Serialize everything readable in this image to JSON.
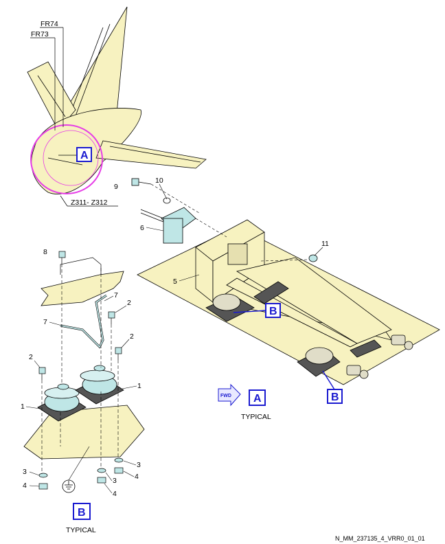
{
  "callouts": {
    "fr74": "FR74",
    "fr73": "FR73",
    "zone": "Z311- Z312",
    "view_a": "A",
    "view_b": "B",
    "typical": "TYPICAL",
    "fwd": "FWD"
  },
  "item_numbers": {
    "n1": "1",
    "n2": "2",
    "n3": "3",
    "n4": "4",
    "n5": "5",
    "n6": "6",
    "n7": "7",
    "n8": "8",
    "n9": "9",
    "n10": "10",
    "n11": "11"
  },
  "footer": {
    "figure_id": "N_MM_237135_4_VRR0_01_01"
  },
  "colors": {
    "fill": "#f7f2c0",
    "highlight": "#e63ce6",
    "callout_box": "#1a1ad0",
    "mount_fill": "#bfe6e6",
    "line": "#000000"
  }
}
